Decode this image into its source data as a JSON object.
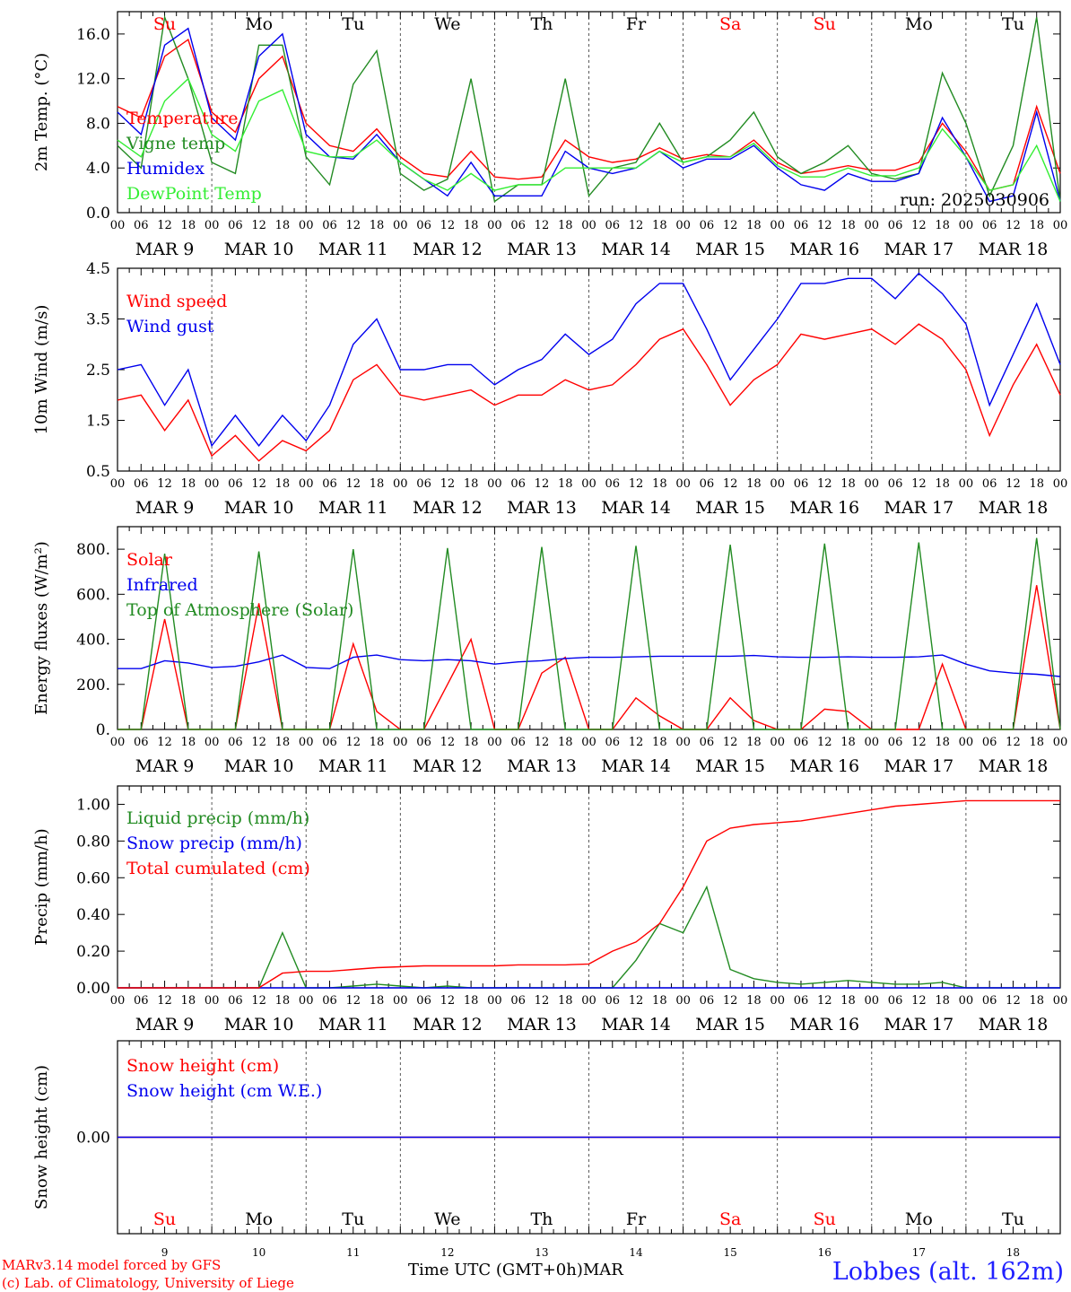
{
  "chart_data": [
    {
      "type": "line",
      "ylabel": "2m Temp. (°C)",
      "ylim": [
        0,
        18
      ],
      "yticks": [
        "0.0",
        "4.0",
        "8.0",
        "12.0",
        "16.0"
      ],
      "ytick_values": [
        0,
        4,
        8,
        12,
        16
      ],
      "run_label": "run: 2025030906",
      "x_hours": [
        0,
        6,
        12,
        18,
        24,
        30,
        36,
        42,
        48,
        54,
        60,
        66,
        72,
        78,
        84,
        90,
        96,
        102,
        108,
        114,
        120,
        126,
        132,
        138,
        144,
        150,
        156,
        162,
        168,
        174,
        180,
        186,
        192,
        198,
        204,
        210,
        216,
        222,
        228,
        234,
        240
      ],
      "series": [
        {
          "name": "Temperature",
          "color": "#ff0000",
          "values": [
            9.5,
            8.5,
            14,
            15.5,
            9,
            7.2,
            12,
            14,
            8,
            6,
            5.5,
            7.5,
            5,
            3.5,
            3.2,
            5.5,
            3.2,
            3,
            3.2,
            6.5,
            5,
            4.5,
            4.8,
            5.8,
            4.8,
            5.2,
            5,
            6.5,
            4.5,
            3.5,
            3.8,
            4.2,
            3.8,
            3.8,
            4.5,
            8,
            5.5,
            2,
            2.5,
            9.5,
            3.5
          ]
        },
        {
          "name": "Vigne temp",
          "color": "#228b22",
          "values": [
            6,
            4,
            17.5,
            12,
            4.5,
            3.5,
            15,
            15,
            5,
            2.5,
            11.5,
            14.5,
            3.5,
            2,
            3,
            12,
            1,
            2.5,
            2.5,
            12,
            1.5,
            4,
            4.5,
            8,
            4.5,
            5,
            6.5,
            9,
            5,
            3.5,
            4.5,
            6,
            3.5,
            3,
            3.5,
            12.5,
            8,
            1.5,
            6,
            17.5,
            1
          ]
        },
        {
          "name": "Humidex",
          "color": "#0000ee",
          "values": [
            9,
            7,
            15,
            16.5,
            8.5,
            6.5,
            14,
            16,
            7,
            5,
            4.8,
            7,
            4.5,
            3,
            1.5,
            4.5,
            1.5,
            1.5,
            1.5,
            5.5,
            4,
            3.5,
            4,
            5.5,
            4,
            4.8,
            4.8,
            6,
            4,
            2.5,
            2,
            3.5,
            2.8,
            2.8,
            3.5,
            8.5,
            5,
            1,
            1.5,
            9,
            1
          ]
        },
        {
          "name": "DewPoint Temp",
          "color": "#33ee33",
          "values": [
            6.5,
            5,
            10,
            12,
            7,
            5.5,
            10,
            11,
            5.5,
            5,
            5,
            6.5,
            4.5,
            3,
            2,
            3.5,
            2,
            2.5,
            2.5,
            4,
            4,
            4,
            4,
            5.5,
            4.5,
            5,
            5,
            6.2,
            4.2,
            3.2,
            3.2,
            4,
            3.3,
            3.3,
            4,
            7.5,
            5,
            2,
            2.5,
            6,
            1
          ]
        }
      ]
    },
    {
      "type": "line",
      "ylabel": "10m Wind (m/s)",
      "ylim": [
        0.5,
        4.5
      ],
      "yticks": [
        "0.5",
        "1.5",
        "2.5",
        "3.5",
        "4.5"
      ],
      "ytick_values": [
        0.5,
        1.5,
        2.5,
        3.5,
        4.5
      ],
      "x_hours": [
        0,
        6,
        12,
        18,
        24,
        30,
        36,
        42,
        48,
        54,
        60,
        66,
        72,
        78,
        84,
        90,
        96,
        102,
        108,
        114,
        120,
        126,
        132,
        138,
        144,
        150,
        156,
        162,
        168,
        174,
        180,
        186,
        192,
        198,
        204,
        210,
        216,
        222,
        228,
        234,
        240
      ],
      "series": [
        {
          "name": "Wind speed",
          "color": "#ff0000",
          "values": [
            1.9,
            2,
            1.3,
            1.9,
            0.8,
            1.2,
            0.7,
            1.1,
            0.9,
            1.3,
            2.3,
            2.6,
            2,
            1.9,
            2,
            2.1,
            1.8,
            2,
            2,
            2.3,
            2.1,
            2.2,
            2.6,
            3.1,
            3.3,
            2.6,
            1.8,
            2.3,
            2.6,
            3.2,
            3.1,
            3.2,
            3.3,
            3,
            3.4,
            3.1,
            2.5,
            1.2,
            2.2,
            3,
            2
          ]
        },
        {
          "name": "Wind gust",
          "color": "#0000ee",
          "values": [
            2.5,
            2.6,
            1.8,
            2.5,
            1,
            1.6,
            1,
            1.6,
            1.1,
            1.8,
            3,
            3.5,
            2.5,
            2.5,
            2.6,
            2.6,
            2.2,
            2.5,
            2.7,
            3.2,
            2.8,
            3.1,
            3.8,
            4.2,
            4.2,
            3.3,
            2.3,
            2.9,
            3.5,
            4.2,
            4.2,
            4.3,
            4.3,
            3.9,
            4.4,
            4,
            3.4,
            1.8,
            2.8,
            3.8,
            2.6
          ]
        }
      ]
    },
    {
      "type": "line",
      "ylabel": "Energy fluxes (W/m²)",
      "ylim": [
        0,
        900
      ],
      "yticks": [
        "0.",
        "200.",
        "400.",
        "600.",
        "800."
      ],
      "ytick_values": [
        0,
        200,
        400,
        600,
        800
      ],
      "x_hours": [
        0,
        6,
        12,
        18,
        24,
        30,
        36,
        42,
        48,
        54,
        60,
        66,
        72,
        78,
        84,
        90,
        96,
        102,
        108,
        114,
        120,
        126,
        132,
        138,
        144,
        150,
        156,
        162,
        168,
        174,
        180,
        186,
        192,
        198,
        204,
        210,
        216,
        222,
        228,
        234,
        240
      ],
      "series": [
        {
          "name": "Solar",
          "color": "#ff0000",
          "values": [
            0,
            0,
            490,
            0,
            0,
            0,
            560,
            0,
            0,
            0,
            380,
            80,
            0,
            0,
            200,
            400,
            0,
            0,
            250,
            320,
            0,
            0,
            140,
            60,
            0,
            0,
            140,
            40,
            0,
            0,
            90,
            80,
            0,
            0,
            0,
            290,
            0,
            0,
            0,
            640,
            0
          ]
        },
        {
          "name": "Infrared",
          "color": "#0000ee",
          "values": [
            270,
            270,
            305,
            295,
            275,
            280,
            300,
            330,
            275,
            270,
            320,
            330,
            310,
            305,
            310,
            305,
            290,
            300,
            305,
            315,
            320,
            320,
            322,
            325,
            325,
            325,
            325,
            328,
            322,
            320,
            320,
            322,
            320,
            320,
            322,
            330,
            290,
            260,
            250,
            245,
            235
          ]
        },
        {
          "name": "Top of Atmosphere (Solar)",
          "color": "#228b22",
          "values": [
            0,
            0,
            780,
            0,
            0,
            0,
            790,
            0,
            0,
            0,
            800,
            0,
            0,
            0,
            805,
            0,
            0,
            0,
            810,
            0,
            0,
            0,
            815,
            0,
            0,
            0,
            820,
            0,
            0,
            0,
            825,
            0,
            0,
            0,
            830,
            0,
            0,
            0,
            0,
            850,
            0
          ]
        }
      ]
    },
    {
      "type": "line",
      "ylabel": "Precip (mm/h)",
      "ylim": [
        0,
        1.1
      ],
      "yticks": [
        "0.00",
        "0.20",
        "0.40",
        "0.60",
        "0.80",
        "1.00"
      ],
      "ytick_values": [
        0,
        0.2,
        0.4,
        0.6,
        0.8,
        1.0
      ],
      "x_hours": [
        0,
        6,
        12,
        18,
        24,
        30,
        36,
        42,
        48,
        54,
        60,
        66,
        72,
        78,
        84,
        90,
        96,
        102,
        108,
        114,
        120,
        126,
        132,
        138,
        144,
        150,
        156,
        162,
        168,
        174,
        180,
        186,
        192,
        198,
        204,
        210,
        216,
        222,
        228,
        234,
        240
      ],
      "series": [
        {
          "name": "Liquid precip (mm/h)",
          "color": "#228b22",
          "values": [
            0,
            0,
            0,
            0,
            0,
            0,
            0,
            0.3,
            0,
            0,
            0.01,
            0.02,
            0.01,
            0,
            0.01,
            0,
            0,
            0,
            0,
            0,
            0,
            0,
            0.15,
            0.35,
            0.3,
            0.55,
            0.1,
            0.05,
            0.03,
            0.02,
            0.03,
            0.04,
            0.03,
            0.02,
            0.02,
            0.03,
            0,
            0,
            0,
            0,
            0
          ]
        },
        {
          "name": "Snow precip (mm/h)",
          "color": "#0000ee",
          "values": [
            0,
            0,
            0,
            0,
            0,
            0,
            0,
            0,
            0,
            0,
            0,
            0,
            0,
            0,
            0,
            0,
            0,
            0,
            0,
            0,
            0,
            0,
            0,
            0,
            0,
            0,
            0,
            0,
            0,
            0,
            0,
            0,
            0,
            0,
            0,
            0,
            0,
            0,
            0,
            0,
            0
          ]
        },
        {
          "name": "Total cumulated (cm)",
          "color": "#ff0000",
          "values": [
            0,
            0,
            0,
            0,
            0,
            0,
            0,
            0.08,
            0.09,
            0.09,
            0.1,
            0.11,
            0.115,
            0.12,
            0.12,
            0.12,
            0.12,
            0.125,
            0.125,
            0.125,
            0.13,
            0.2,
            0.25,
            0.35,
            0.55,
            0.8,
            0.87,
            0.89,
            0.9,
            0.91,
            0.93,
            0.95,
            0.97,
            0.99,
            1.0,
            1.01,
            1.02,
            1.02,
            1.02,
            1.02,
            1.02
          ]
        }
      ]
    },
    {
      "type": "line",
      "ylabel": "Snow height (cm)",
      "ylim": [
        -1,
        1
      ],
      "yticks": [
        "0.00"
      ],
      "ytick_values": [
        0
      ],
      "x_hours": [
        0,
        240
      ],
      "series": [
        {
          "name": "Snow height (cm)",
          "color": "#ff0000",
          "values": [
            0,
            0
          ]
        },
        {
          "name": "Snow height (cm W.E.)",
          "color": "#0000ee",
          "values": [
            0,
            0
          ]
        }
      ]
    }
  ],
  "days": [
    {
      "abbr": "Su",
      "date": "MAR  9",
      "num": "9",
      "weekend": true
    },
    {
      "abbr": "Mo",
      "date": "MAR 10",
      "num": "10",
      "weekend": false
    },
    {
      "abbr": "Tu",
      "date": "MAR 11",
      "num": "11",
      "weekend": false
    },
    {
      "abbr": "We",
      "date": "MAR 12",
      "num": "12",
      "weekend": false
    },
    {
      "abbr": "Th",
      "date": "MAR 13",
      "num": "13",
      "weekend": false
    },
    {
      "abbr": "Fr",
      "date": "MAR 14",
      "num": "14",
      "weekend": false
    },
    {
      "abbr": "Sa",
      "date": "MAR 15",
      "num": "15",
      "weekend": true
    },
    {
      "abbr": "Su",
      "date": "MAR 16",
      "num": "16",
      "weekend": true
    },
    {
      "abbr": "Mo",
      "date": "MAR 17",
      "num": "17",
      "weekend": false
    },
    {
      "abbr": "Tu",
      "date": "MAR 18",
      "num": "18",
      "weekend": false
    }
  ],
  "hour_labels": [
    "00",
    "06",
    "12",
    "18"
  ],
  "final_hour_label": "00",
  "colors": {
    "weekend": "#ff0000",
    "weekday": "#000000"
  },
  "footer": {
    "model_line1": "MARv3.14 model forced by GFS",
    "model_line2": "(c) Lab. of Climatology, University of Liege",
    "axis_title": "Time UTC (GMT+0h)",
    "month": "MAR",
    "station": "Lobbes (alt. 162m)"
  }
}
